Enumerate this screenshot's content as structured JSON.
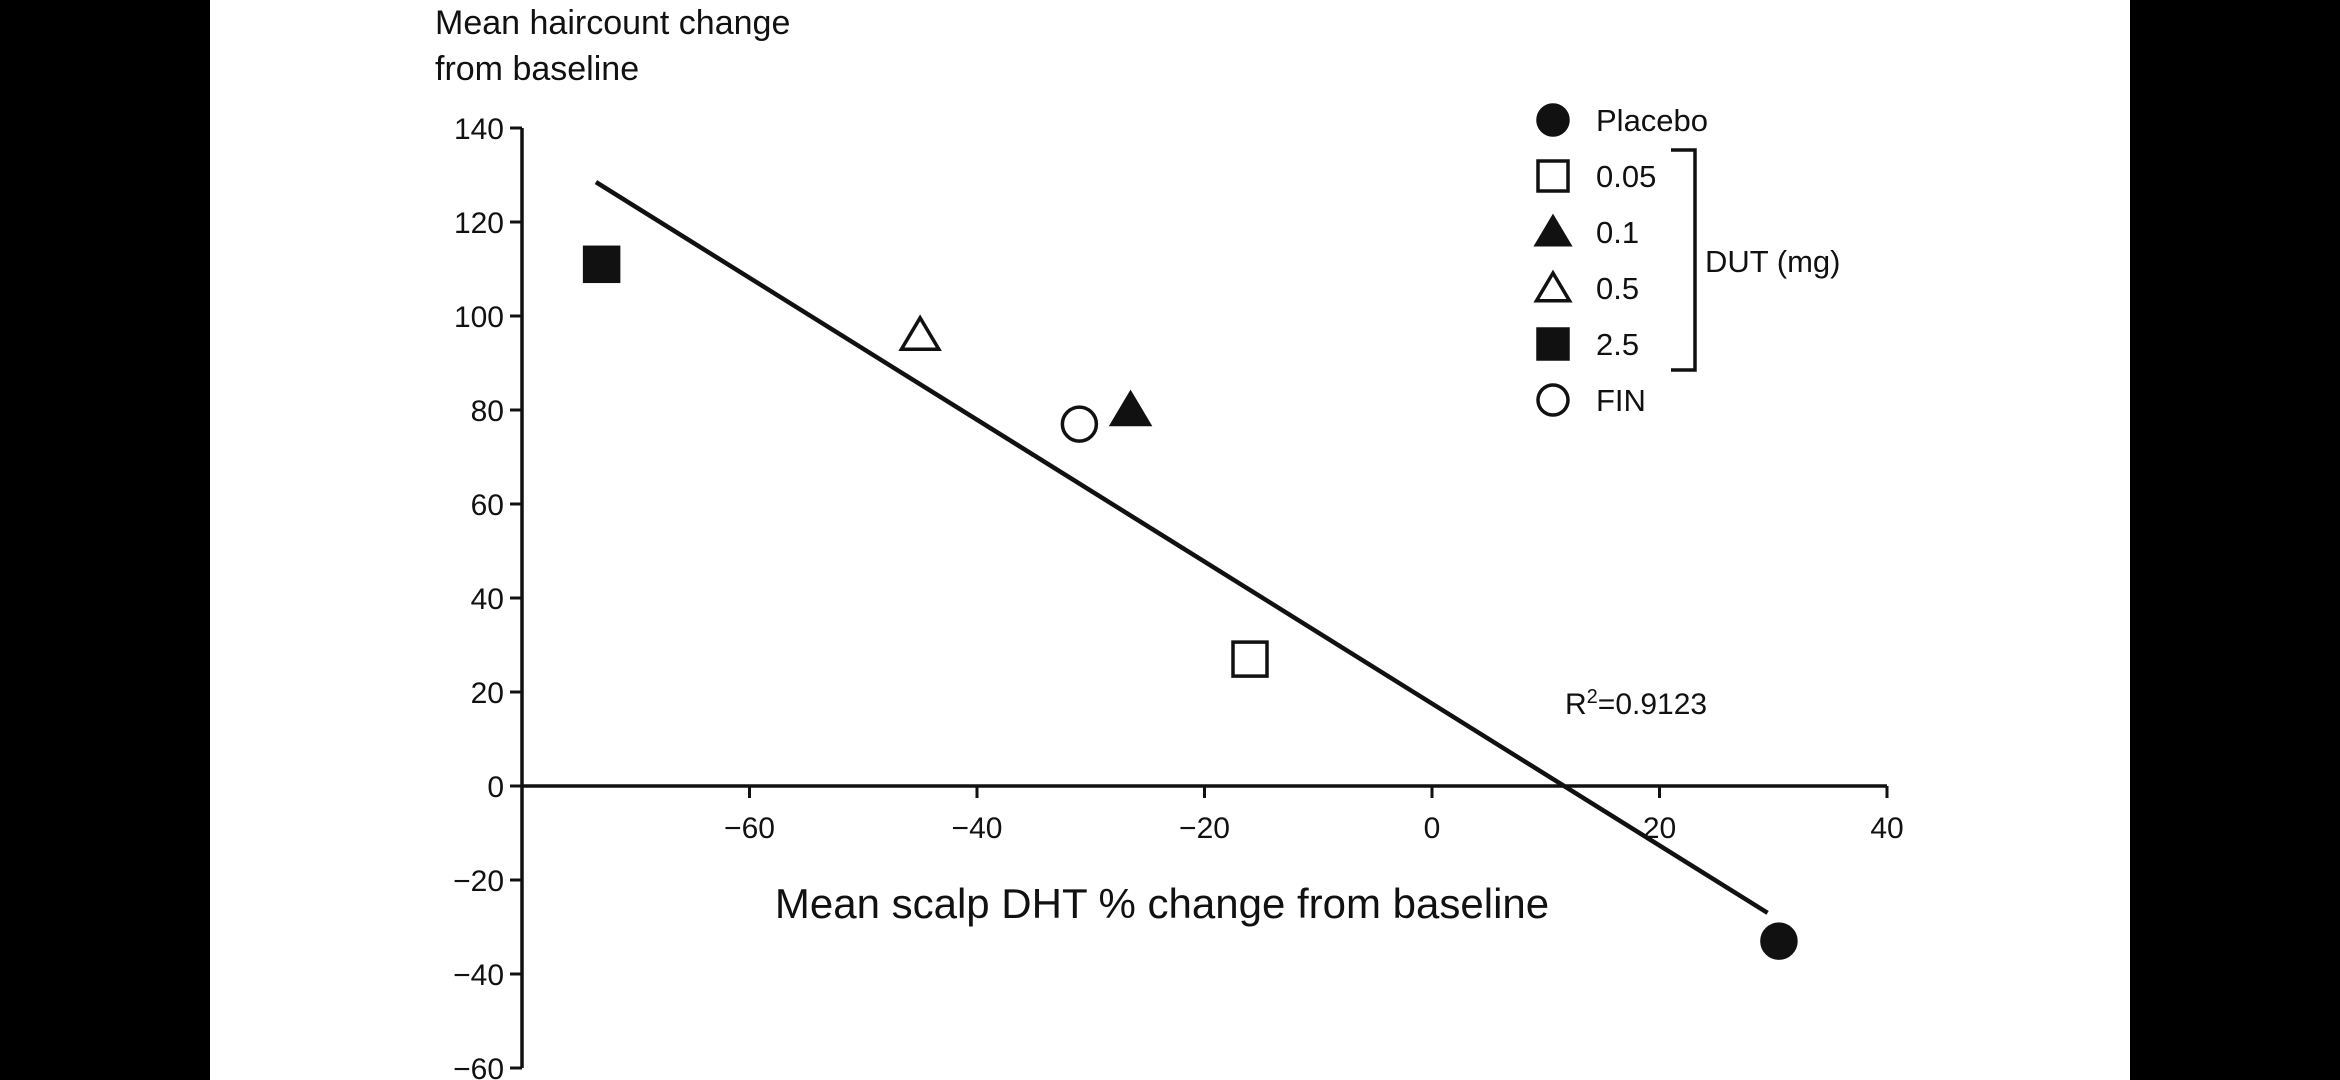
{
  "colors": {
    "background": "#000000",
    "panel": "#ffffff",
    "ink": "#111111"
  },
  "chart_data": {
    "type": "scatter",
    "title": "",
    "ylabel_lines": [
      "Mean haircount change",
      "from baseline"
    ],
    "xlabel": "Mean scalp DHT % change from baseline",
    "xlim": [
      -80,
      40
    ],
    "ylim": [
      -60,
      140
    ],
    "x_ticks": [
      -60,
      -40,
      -20,
      0,
      20,
      40
    ],
    "x_tick_labels": [
      "−60",
      "−40",
      "−20",
      "0",
      "20",
      "40"
    ],
    "y_ticks": [
      140,
      120,
      100,
      80,
      60,
      40,
      20,
      0,
      -20,
      -40,
      -60
    ],
    "y_tick_labels": [
      "140",
      "120",
      "100",
      "80",
      "60",
      "40",
      "20",
      "0",
      "−20",
      "−40",
      "−60"
    ],
    "grid": false,
    "legend_position": "top-right",
    "series": [
      {
        "name": "Placebo",
        "marker": "circle-filled",
        "x": 30.5,
        "y": -33
      },
      {
        "name": "0.05",
        "marker": "square-open",
        "x": -16,
        "y": 27
      },
      {
        "name": "0.1",
        "marker": "triangle-filled",
        "x": -26.5,
        "y": 80
      },
      {
        "name": "0.5",
        "marker": "triangle-open",
        "x": -45,
        "y": 96
      },
      {
        "name": "2.5",
        "marker": "square-filled",
        "x": -73,
        "y": 111
      },
      {
        "name": "FIN",
        "marker": "circle-open",
        "x": -31,
        "y": 77
      }
    ],
    "legend_group": {
      "label": "DUT (mg)",
      "members": [
        "0.05",
        "0.1",
        "0.5",
        "2.5"
      ]
    },
    "trendline": {
      "x": [
        -73.5,
        29.5
      ],
      "y": [
        128.5,
        -27
      ]
    },
    "annotation": {
      "prefix": "R",
      "superscript": "2",
      "value": "=0.9123"
    }
  }
}
